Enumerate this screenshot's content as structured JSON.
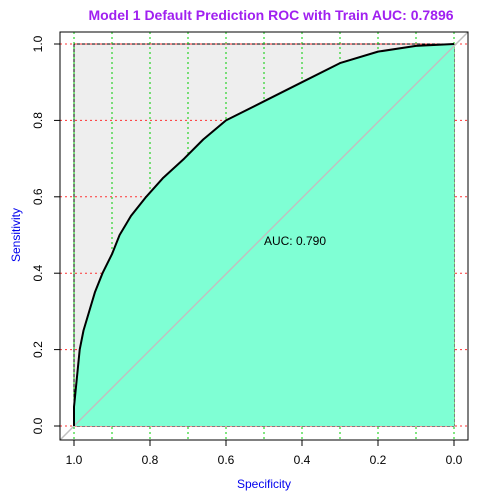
{
  "chart_data": {
    "type": "line",
    "title": "Model 1 Default Prediction ROC with Train AUC: 0.7896",
    "xlabel": "Specificity",
    "ylabel": "Sensitivity",
    "xlim": [
      1.0,
      0.0
    ],
    "ylim": [
      0.0,
      1.0
    ],
    "x_ticks": [
      1.0,
      0.8,
      0.6,
      0.4,
      0.2,
      0.0
    ],
    "x_tick_labels": [
      "1.0",
      "0.8",
      "0.6",
      "0.4",
      "0.2",
      "0.0"
    ],
    "y_ticks": [
      0.0,
      0.2,
      0.4,
      0.6,
      0.8,
      1.0
    ],
    "y_tick_labels": [
      "0.0",
      "0.2",
      "0.4",
      "0.6",
      "0.8",
      "1.0"
    ],
    "x_grid": [
      1.0,
      0.9,
      0.8,
      0.7,
      0.6,
      0.5,
      0.4,
      0.3,
      0.2,
      0.1,
      0.0
    ],
    "y_grid": [
      0.0,
      0.2,
      0.4,
      0.6,
      0.8,
      1.0
    ],
    "annotation": "AUC: 0.790",
    "auc": 0.79,
    "colors": {
      "curve": "#000000",
      "auc_fill": "#7fffd4",
      "max_auc_fill": "#eeeeee",
      "x_grid": "#00cc00",
      "y_grid": "#ff3333",
      "diagonal": "#c0c0c0",
      "title": "#a020f0",
      "axis_title": "#0000ee"
    },
    "series": [
      {
        "points": [
          {
            "specificity": 1.0,
            "sensitivity": 0.0
          },
          {
            "specificity": 1.0,
            "sensitivity": 0.05
          },
          {
            "specificity": 0.995,
            "sensitivity": 0.1
          },
          {
            "specificity": 0.99,
            "sensitivity": 0.15
          },
          {
            "specificity": 0.985,
            "sensitivity": 0.2
          },
          {
            "specificity": 0.975,
            "sensitivity": 0.25
          },
          {
            "specificity": 0.96,
            "sensitivity": 0.3
          },
          {
            "specificity": 0.945,
            "sensitivity": 0.35
          },
          {
            "specificity": 0.925,
            "sensitivity": 0.4
          },
          {
            "specificity": 0.9,
            "sensitivity": 0.45
          },
          {
            "specificity": 0.88,
            "sensitivity": 0.5
          },
          {
            "specificity": 0.85,
            "sensitivity": 0.55
          },
          {
            "specificity": 0.81,
            "sensitivity": 0.6
          },
          {
            "specificity": 0.765,
            "sensitivity": 0.65
          },
          {
            "specificity": 0.71,
            "sensitivity": 0.7
          },
          {
            "specificity": 0.66,
            "sensitivity": 0.75
          },
          {
            "specificity": 0.6,
            "sensitivity": 0.8
          },
          {
            "specificity": 0.5,
            "sensitivity": 0.85
          },
          {
            "specificity": 0.4,
            "sensitivity": 0.9
          },
          {
            "specificity": 0.3,
            "sensitivity": 0.95
          },
          {
            "specificity": 0.2,
            "sensitivity": 0.98
          },
          {
            "specificity": 0.1,
            "sensitivity": 0.995
          },
          {
            "specificity": 0.0,
            "sensitivity": 1.0
          }
        ]
      }
    ]
  }
}
